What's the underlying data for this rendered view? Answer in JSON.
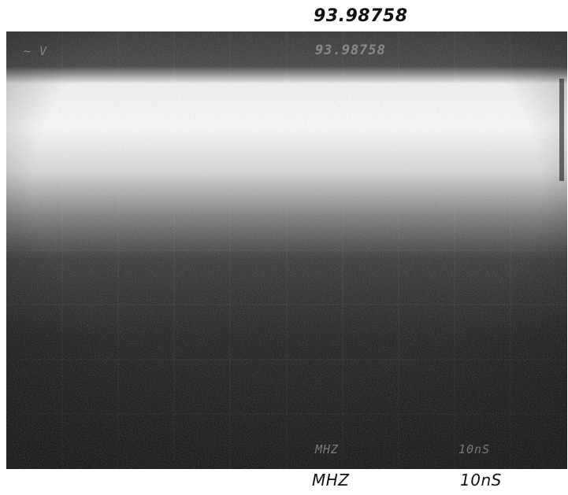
{
  "caption_top": "93.98758",
  "caption_unit": "MHZ",
  "caption_time": "10nS",
  "screen": {
    "frequency_readout": "93.98758",
    "unit_readout": "MHZ",
    "time_readout": "10nS"
  }
}
